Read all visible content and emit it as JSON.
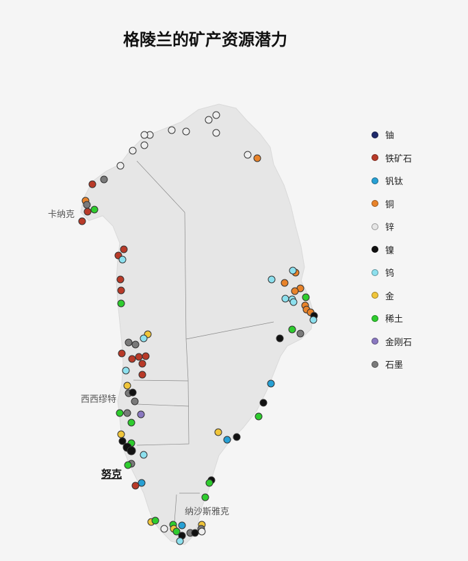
{
  "title": "格陵兰的矿产资源潜力",
  "place_labels": {
    "kanak": "卡纳克",
    "sisimiut": "西西缪特",
    "nuuk": "努克",
    "narsaq": "纳沙斯雅克"
  },
  "legend": [
    {
      "key": "uranium",
      "label": "铀",
      "color": "#1f2a6b"
    },
    {
      "key": "iron",
      "label": "铁矿石",
      "color": "#b83a28"
    },
    {
      "key": "vanadium",
      "label": "钒钛",
      "color": "#27a0d4"
    },
    {
      "key": "copper",
      "label": "铜",
      "color": "#e8832a"
    },
    {
      "key": "zinc",
      "label": "锌",
      "color": "#e6e6e6"
    },
    {
      "key": "nickel",
      "label": "镍",
      "color": "#111111"
    },
    {
      "key": "tungsten",
      "label": "钨",
      "color": "#8de0ee"
    },
    {
      "key": "gold",
      "label": "金",
      "color": "#f0c53a"
    },
    {
      "key": "rare_earth",
      "label": "稀土",
      "color": "#2ecc2e"
    },
    {
      "key": "diamond",
      "label": "金刚石",
      "color": "#8a78c0"
    },
    {
      "key": "graphite",
      "label": "石墨",
      "color": "#7a7a7a"
    }
  ]
}
